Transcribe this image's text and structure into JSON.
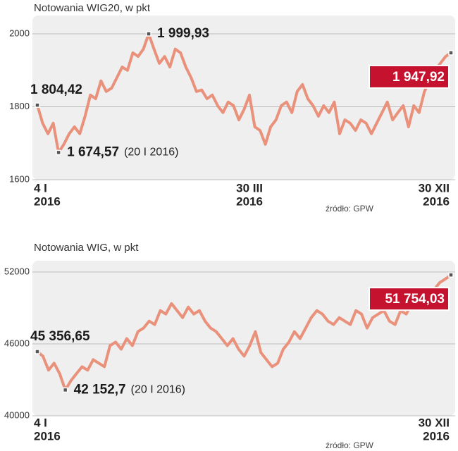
{
  "chart_data": [
    {
      "type": "line",
      "title": "Notowania WIG20, w pkt",
      "categories": [
        [
          "4 I",
          "2016"
        ],
        null,
        null,
        null,
        null,
        null,
        null,
        null,
        null,
        null,
        null,
        null,
        null,
        null,
        null,
        null,
        null,
        null,
        null,
        null,
        null,
        null,
        null,
        null,
        null,
        null,
        null,
        null,
        null,
        null,
        null,
        null,
        null,
        null,
        null,
        null,
        null,
        null,
        null,
        null,
        [
          "30 III",
          "2016"
        ],
        null,
        null,
        null,
        null,
        null,
        null,
        null,
        null,
        null,
        null,
        null,
        null,
        null,
        null,
        null,
        null,
        null,
        null,
        null,
        null,
        null,
        null,
        null,
        null,
        null,
        null,
        null,
        null,
        null,
        null,
        null,
        null,
        null,
        null,
        null,
        null,
        null,
        [
          "30 XII",
          "2016"
        ]
      ],
      "series": [
        {
          "color": "#e9917b",
          "values": [
            1804.42,
            1755,
            1726,
            1755,
            1674.57,
            1697,
            1726,
            1745,
            1726,
            1774,
            1832,
            1822,
            1871,
            1842,
            1851,
            1880,
            1909,
            1900,
            1948,
            1938,
            1958,
            1999.93,
            1958,
            1919,
            1938,
            1909,
            1958,
            1948,
            1909,
            1880,
            1842,
            1846,
            1822,
            1832,
            1803,
            1784,
            1813,
            1803,
            1764,
            1793,
            1832,
            1745,
            1735,
            1697,
            1745,
            1764,
            1803,
            1813,
            1784,
            1842,
            1861,
            1822,
            1803,
            1774,
            1803,
            1784,
            1813,
            1726,
            1764,
            1755,
            1735,
            1764,
            1755,
            1726,
            1755,
            1784,
            1813,
            1764,
            1784,
            1803,
            1745,
            1803,
            1784,
            1842,
            1871,
            1900,
            1919,
            1938,
            1947.92
          ],
          "value_labels": [
            "1 804,42",
            null,
            null,
            null,
            "1 674,57",
            null,
            null,
            null,
            null,
            null,
            null,
            null,
            null,
            null,
            null,
            null,
            null,
            null,
            null,
            null,
            null,
            "1 999,93",
            null,
            null,
            null,
            null,
            null,
            null,
            null,
            null,
            null,
            null,
            null,
            null,
            null,
            null,
            null,
            null,
            null,
            null,
            null,
            null,
            null,
            null,
            null,
            null,
            null,
            null,
            null,
            null,
            null,
            null,
            null,
            null,
            null,
            null,
            null,
            null,
            null,
            null,
            null,
            null,
            null,
            null,
            null,
            null,
            null,
            null,
            null,
            null,
            null,
            null,
            null,
            null,
            null,
            null,
            null,
            null,
            "1 947,92"
          ]
        }
      ],
      "low_note": "(20 I 2016)",
      "ylim": [
        1600,
        2000
      ],
      "yticks": [
        1600,
        1800,
        2000
      ],
      "grid": true,
      "source": "źródło: GPW"
    },
    {
      "type": "line",
      "title": "Notowania WIG, w pkt",
      "categories": [
        [
          "4 I",
          "2016"
        ],
        null,
        null,
        null,
        null,
        null,
        null,
        null,
        null,
        null,
        null,
        null,
        null,
        null,
        null,
        null,
        null,
        null,
        null,
        null,
        null,
        null,
        null,
        null,
        null,
        null,
        null,
        null,
        null,
        null,
        null,
        null,
        null,
        null,
        null,
        null,
        null,
        null,
        null,
        null,
        null,
        null,
        null,
        null,
        null,
        null,
        null,
        null,
        null,
        null,
        null,
        null,
        null,
        null,
        null,
        null,
        null,
        null,
        null,
        null,
        null,
        null,
        null,
        null,
        null,
        null,
        null,
        null,
        null,
        null,
        null,
        null,
        null,
        null,
        [
          "30 XII",
          "2016"
        ]
      ],
      "series": [
        {
          "color": "#e9917b",
          "values": [
            45356.65,
            44975,
            43804,
            44390,
            43512,
            42152.7,
            42926,
            43512,
            44097,
            43804,
            44683,
            44390,
            44097,
            45853,
            46146,
            45561,
            46439,
            45853,
            47024,
            47317,
            47902,
            47610,
            48780,
            48488,
            49366,
            48780,
            48195,
            49073,
            48488,
            48780,
            47902,
            47317,
            47024,
            46439,
            45853,
            46439,
            45561,
            44975,
            45853,
            47024,
            45268,
            44683,
            44097,
            44390,
            45561,
            46146,
            47024,
            46439,
            47317,
            48195,
            48780,
            48488,
            47902,
            47610,
            48195,
            47902,
            47610,
            48780,
            48488,
            47317,
            48195,
            48488,
            48780,
            47902,
            47610,
            48780,
            48488,
            49366,
            49073,
            49658,
            49951,
            50537,
            51122,
            51415,
            51754.03
          ],
          "value_labels": [
            "45 356,65",
            null,
            null,
            null,
            null,
            "42 152,7",
            null,
            null,
            null,
            null,
            null,
            null,
            null,
            null,
            null,
            null,
            null,
            null,
            null,
            null,
            null,
            null,
            null,
            null,
            null,
            null,
            null,
            null,
            null,
            null,
            null,
            null,
            null,
            null,
            null,
            null,
            null,
            null,
            null,
            null,
            null,
            null,
            null,
            null,
            null,
            null,
            null,
            null,
            null,
            null,
            null,
            null,
            null,
            null,
            null,
            null,
            null,
            null,
            null,
            null,
            null,
            null,
            null,
            null,
            null,
            null,
            null,
            null,
            null,
            null,
            null,
            null,
            null,
            null,
            "51 754,03"
          ]
        }
      ],
      "low_note": "(20 I 2016)",
      "ylim": [
        40000,
        52000
      ],
      "yticks": [
        40000,
        46000,
        52000
      ],
      "grid": true,
      "source": "źródło: GPW"
    }
  ]
}
